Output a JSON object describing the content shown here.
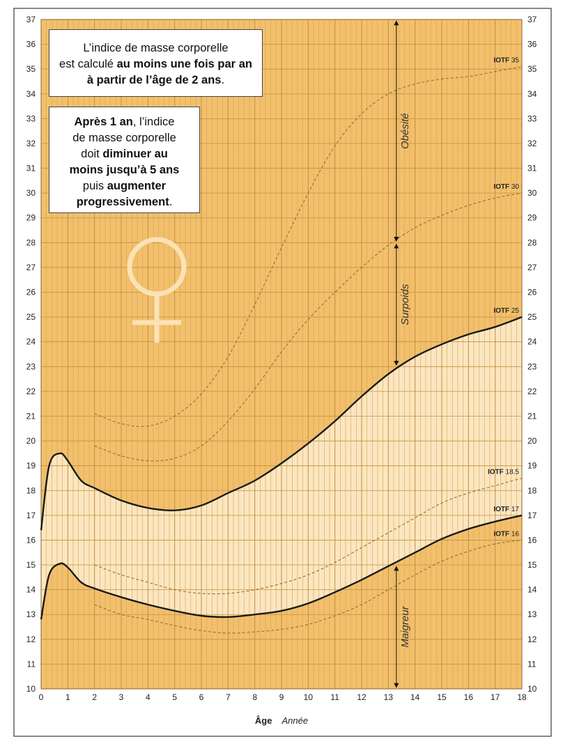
{
  "chart_data": {
    "type": "line",
    "xlim": [
      0,
      18
    ],
    "ylim": [
      10,
      37
    ],
    "x_ticks": [
      0,
      1,
      2,
      3,
      4,
      5,
      6,
      7,
      8,
      9,
      10,
      11,
      12,
      13,
      14,
      15,
      16,
      17,
      18
    ],
    "y_ticks": [
      10,
      11,
      12,
      13,
      14,
      15,
      16,
      17,
      18,
      19,
      20,
      21,
      22,
      23,
      24,
      25,
      26,
      27,
      28,
      29,
      30,
      31,
      32,
      33,
      34,
      35,
      36,
      37
    ],
    "xlabel_bold": "Âge",
    "xlabel_italic": "Année",
    "grid": true,
    "colors": {
      "background": "#f2c06c",
      "normal_zone": "#fbe6c0",
      "grid_minor": "#d8a552",
      "grid_major": "#c48e3c",
      "solid_line": "#1a1a1a",
      "dashed_line": "#9a6a33",
      "female_symbol": "#fbe2b6"
    },
    "series": [
      {
        "name": "IOTF 35",
        "label_bold": "IOTF",
        "label_num": "35",
        "style": "dashed",
        "x": [
          2,
          3,
          4,
          5,
          6,
          7,
          8,
          9,
          10,
          11,
          12,
          13,
          14,
          15,
          16,
          17,
          18
        ],
        "y": [
          21.1,
          20.7,
          20.6,
          21.0,
          21.9,
          23.4,
          25.5,
          27.8,
          30.0,
          31.9,
          33.2,
          34.0,
          34.4,
          34.6,
          34.7,
          34.9,
          35.1
        ]
      },
      {
        "name": "IOTF 30",
        "label_bold": "IOTF",
        "label_num": "30",
        "style": "dashed",
        "x": [
          2,
          3,
          4,
          5,
          6,
          7,
          8,
          9,
          10,
          11,
          12,
          13,
          14,
          15,
          16,
          17,
          18
        ],
        "y": [
          19.8,
          19.4,
          19.2,
          19.3,
          19.8,
          20.8,
          22.1,
          23.6,
          24.9,
          26.0,
          27.0,
          27.9,
          28.6,
          29.1,
          29.5,
          29.8,
          30.0
        ]
      },
      {
        "name": "IOTF 25",
        "label_bold": "IOTF",
        "label_num": "25",
        "style": "solid",
        "x": [
          0,
          0.3,
          0.7,
          1,
          1.5,
          2,
          3,
          4,
          5,
          6,
          7,
          8,
          9,
          10,
          11,
          12,
          13,
          14,
          15,
          16,
          17,
          18
        ],
        "y": [
          16.4,
          19.0,
          19.5,
          19.2,
          18.4,
          18.1,
          17.6,
          17.3,
          17.2,
          17.4,
          17.9,
          18.4,
          19.1,
          19.9,
          20.8,
          21.8,
          22.7,
          23.4,
          23.9,
          24.3,
          24.6,
          25.0
        ]
      },
      {
        "name": "IOTF 18.5",
        "label_bold": "IOTF",
        "label_num": "18.5",
        "style": "dashed",
        "x": [
          2,
          3,
          4,
          5,
          6,
          7,
          8,
          9,
          10,
          11,
          12,
          13,
          14,
          15,
          16,
          17,
          18
        ],
        "y": [
          15.0,
          14.6,
          14.3,
          14.0,
          13.85,
          13.85,
          14.0,
          14.25,
          14.6,
          15.1,
          15.7,
          16.3,
          16.9,
          17.5,
          17.9,
          18.2,
          18.5
        ]
      },
      {
        "name": "IOTF 17",
        "label_bold": "IOTF",
        "label_num": "17",
        "style": "solid",
        "x": [
          0,
          0.3,
          0.7,
          1,
          1.5,
          2,
          3,
          4,
          5,
          6,
          7,
          8,
          9,
          10,
          11,
          12,
          13,
          14,
          15,
          16,
          17,
          18
        ],
        "y": [
          12.8,
          14.6,
          15.05,
          14.9,
          14.3,
          14.05,
          13.7,
          13.4,
          13.15,
          12.95,
          12.9,
          13.0,
          13.15,
          13.45,
          13.9,
          14.4,
          14.95,
          15.5,
          16.05,
          16.45,
          16.75,
          17.0
        ]
      },
      {
        "name": "IOTF 16",
        "label_bold": "IOTF",
        "label_num": "16",
        "style": "dashed",
        "x": [
          2,
          3,
          4,
          5,
          6,
          7,
          8,
          9,
          10,
          11,
          12,
          13,
          14,
          15,
          16,
          17,
          18
        ],
        "y": [
          13.4,
          13.0,
          12.8,
          12.55,
          12.35,
          12.25,
          12.3,
          12.4,
          12.6,
          12.95,
          13.4,
          14.0,
          14.6,
          15.15,
          15.55,
          15.85,
          16.0
        ]
      }
    ],
    "zones": [
      {
        "label": "Obésité",
        "from": 28,
        "to": 37
      },
      {
        "label": "Surpoids",
        "from": 23,
        "to": 28
      },
      {
        "label": "Maigreur",
        "from": 10,
        "to": 15
      }
    ],
    "zone_marker_x": 13.3
  },
  "box1": {
    "l1": "L’indice de masse corporelle",
    "l2a": "est calculé ",
    "l2b": "au moins une fois par an",
    "l3a": "à partir de l’âge de 2 ans",
    "l3b": "."
  },
  "box2": {
    "l1a": "Après 1 an",
    "l1b": ", l’indice",
    "l2": "de masse corporelle",
    "l3a": "doit ",
    "l3b": "diminuer au",
    "l4": "moins jusqu’à 5 ans",
    "l5a": "puis ",
    "l5b": "augmenter",
    "l6a": "progressivement",
    "l6b": "."
  }
}
